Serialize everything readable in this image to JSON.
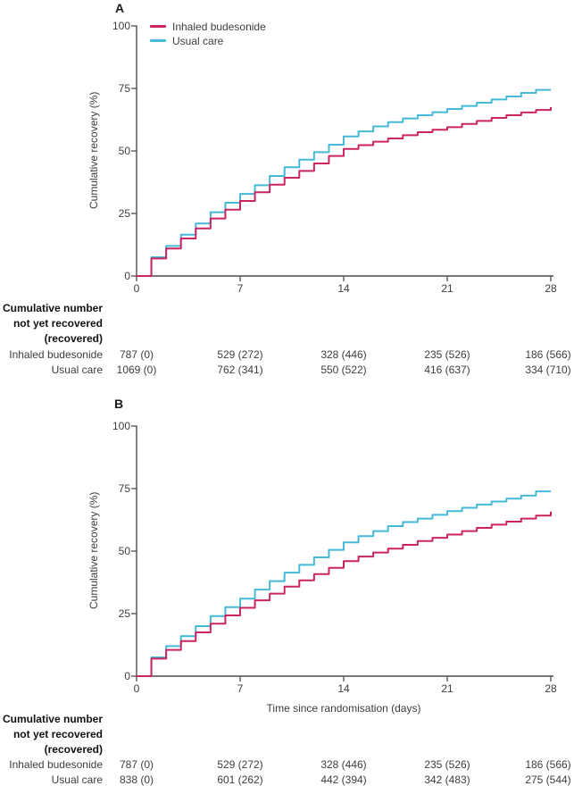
{
  "figure_title": "Cumulative recovery Kaplan-Meier figure, panels A and B",
  "accent_colors": {
    "budesonide": "#cb2463",
    "usual_care": "#44b9d8",
    "axis": "#4d4d4f",
    "text": "#3d3d3d"
  },
  "chart_data": [
    {
      "type": "line",
      "panel": "A",
      "ylabel": "Cumulative recovery (%)",
      "xlabel": "",
      "xlim": [
        0,
        28
      ],
      "ylim": [
        0,
        100
      ],
      "x_ticks": [
        0,
        7,
        14,
        21,
        28
      ],
      "y_ticks": [
        0,
        25,
        50,
        75,
        100
      ],
      "grid": false,
      "legend_position": "top-left-inside",
      "x_days": [
        0,
        1,
        2,
        3,
        4,
        5,
        6,
        7,
        8,
        9,
        10,
        11,
        12,
        13,
        14,
        15,
        16,
        17,
        18,
        19,
        20,
        21,
        22,
        23,
        24,
        25,
        26,
        27,
        28
      ],
      "series": [
        {
          "name": "Inhaled budesonide",
          "color": "#cb2463",
          "values": [
            0,
            7,
            11,
            15,
            19,
            23,
            26.5,
            30,
            33.5,
            36.5,
            39.3,
            42,
            45,
            48,
            50.8,
            52.3,
            53.7,
            55,
            56.3,
            57.5,
            58.5,
            59.5,
            60.8,
            62,
            63.2,
            64.3,
            65.4,
            66.4,
            67.5
          ]
        },
        {
          "name": "Usual care",
          "color": "#44b9d8",
          "values": [
            0,
            7.5,
            12,
            16.5,
            21,
            25.5,
            29.3,
            32.8,
            36.3,
            40,
            43.5,
            46.5,
            49.5,
            52.5,
            55.8,
            57.8,
            59.8,
            61.5,
            63,
            64.3,
            65.5,
            66.8,
            68,
            69.3,
            70.6,
            71.8,
            73.2,
            74.4,
            74.4
          ]
        }
      ],
      "risk_table": {
        "header_lines": [
          "Cumulative number",
          "not yet recovered",
          "(recovered)"
        ],
        "rows": [
          {
            "label": "Inhaled budesonide",
            "values": [
              "787 (0)",
              "529 (272)",
              "328 (446)",
              "235 (526)",
              "186 (566)"
            ]
          },
          {
            "label": "Usual care",
            "values": [
              "1069 (0)",
              "762 (341)",
              "550 (522)",
              "416 (637)",
              "334 (710)"
            ]
          }
        ]
      }
    },
    {
      "type": "line",
      "panel": "B",
      "ylabel": "Cumulative recovery (%)",
      "xlabel": "Time since randomisation (days)",
      "xlim": [
        0,
        28
      ],
      "ylim": [
        0,
        100
      ],
      "x_ticks": [
        0,
        7,
        14,
        21,
        28
      ],
      "y_ticks": [
        0,
        25,
        50,
        75,
        100
      ],
      "grid": false,
      "legend_position": "none",
      "x_days": [
        0,
        1,
        2,
        3,
        4,
        5,
        6,
        7,
        8,
        9,
        10,
        11,
        12,
        13,
        14,
        15,
        16,
        17,
        18,
        19,
        20,
        21,
        22,
        23,
        24,
        25,
        26,
        27,
        28
      ],
      "series": [
        {
          "name": "Inhaled budesonide",
          "color": "#cb2463",
          "values": [
            0,
            7,
            10.5,
            14,
            17.5,
            21,
            24.3,
            27.3,
            30.3,
            33,
            35.8,
            38.3,
            40.8,
            43.3,
            46,
            47.8,
            49.4,
            51,
            52.5,
            54,
            55.3,
            56.6,
            58,
            59.3,
            60.6,
            61.8,
            63,
            64.2,
            65.8
          ]
        },
        {
          "name": "Usual care",
          "color": "#44b9d8",
          "values": [
            0,
            7.5,
            12,
            16,
            20,
            24,
            27.6,
            31,
            34.6,
            38,
            41.4,
            44.5,
            47.5,
            50.5,
            53.5,
            56,
            58,
            60,
            61.6,
            63,
            64.5,
            66,
            67.3,
            68.6,
            69.8,
            71,
            72.2,
            73.9,
            73.9
          ]
        }
      ],
      "risk_table": {
        "header_lines": [
          "Cumulative number",
          "not yet recovered",
          "(recovered)"
        ],
        "rows": [
          {
            "label": "Inhaled budesonide",
            "values": [
              "787 (0)",
              "529 (272)",
              "328 (446)",
              "235 (526)",
              "186 (566)"
            ]
          },
          {
            "label": "Usual care",
            "values": [
              "838 (0)",
              "601 (262)",
              "442 (394)",
              "342 (483)",
              "275 (544)"
            ]
          }
        ]
      }
    }
  ]
}
